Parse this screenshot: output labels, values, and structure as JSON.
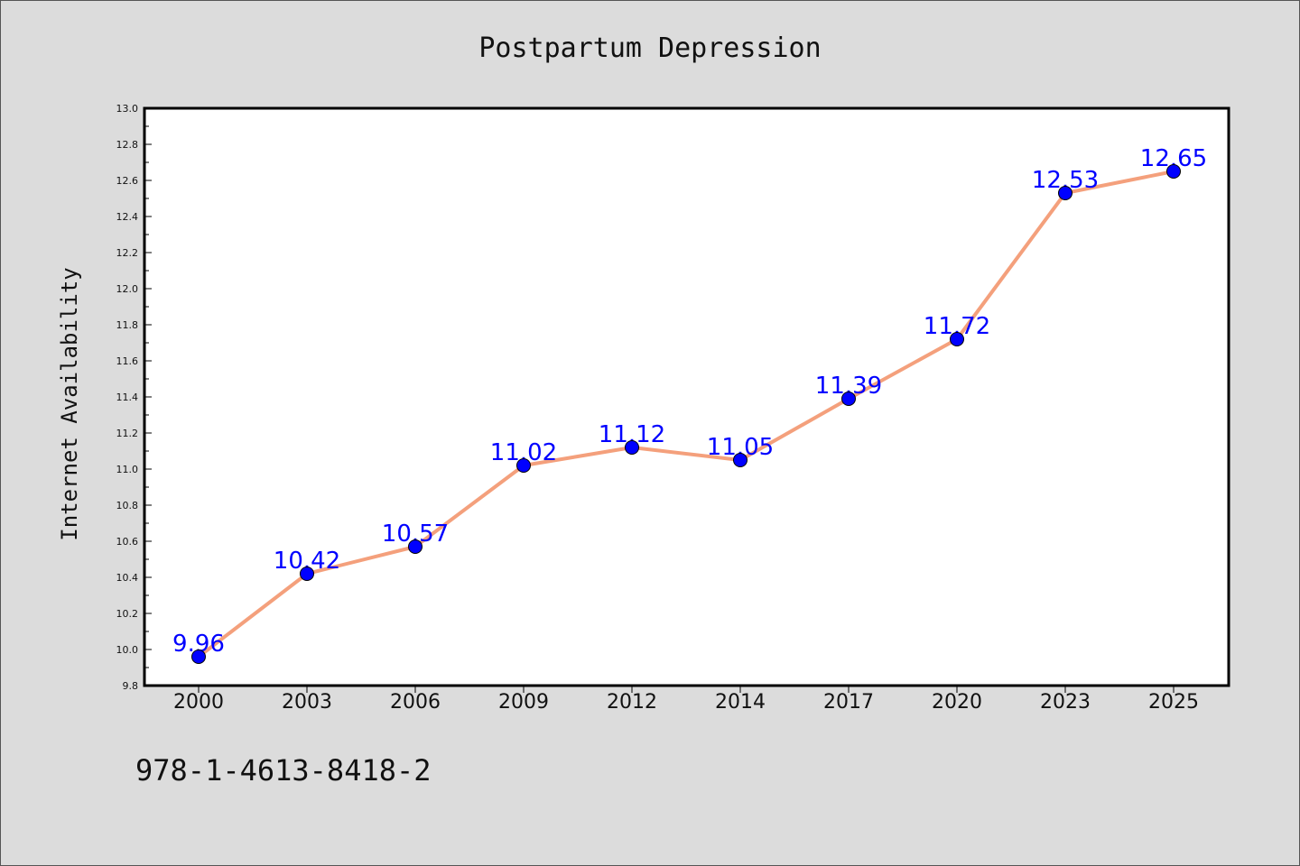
{
  "chart_data": {
    "type": "line",
    "title": "Postpartum Depression",
    "ylabel": "Internet Availability",
    "xlabel": "",
    "categories": [
      "2000",
      "2003",
      "2006",
      "2009",
      "2012",
      "2014",
      "2017",
      "2020",
      "2023",
      "2025"
    ],
    "series": [
      {
        "values": [
          9.96,
          10.42,
          10.57,
          11.02,
          11.12,
          11.05,
          11.39,
          11.72,
          12.53,
          12.65
        ],
        "data_labels": [
          "9.96",
          "10.42",
          "10.57",
          "11.02",
          "11.12",
          "11.05",
          "11.39",
          "11.72",
          "12.53",
          "12.65"
        ],
        "line_color": "#f4a07c",
        "marker_color": "#0000ff",
        "label_color": "#0000ff"
      }
    ],
    "ylim": [
      9.8,
      13.0
    ],
    "yticks": [
      "9.8",
      "10.0",
      "10.2",
      "10.4",
      "10.6",
      "10.8",
      "11.0",
      "11.2",
      "11.4",
      "11.6",
      "11.8",
      "12.0",
      "12.2",
      "12.4",
      "12.6",
      "12.8",
      "13.0"
    ],
    "grid": false,
    "legend": "none"
  },
  "footer_text": "978-1-4613-8418-2",
  "colors": {
    "background": "#dcdcdc",
    "plot_background": "#ffffff",
    "axis": "#000000"
  }
}
